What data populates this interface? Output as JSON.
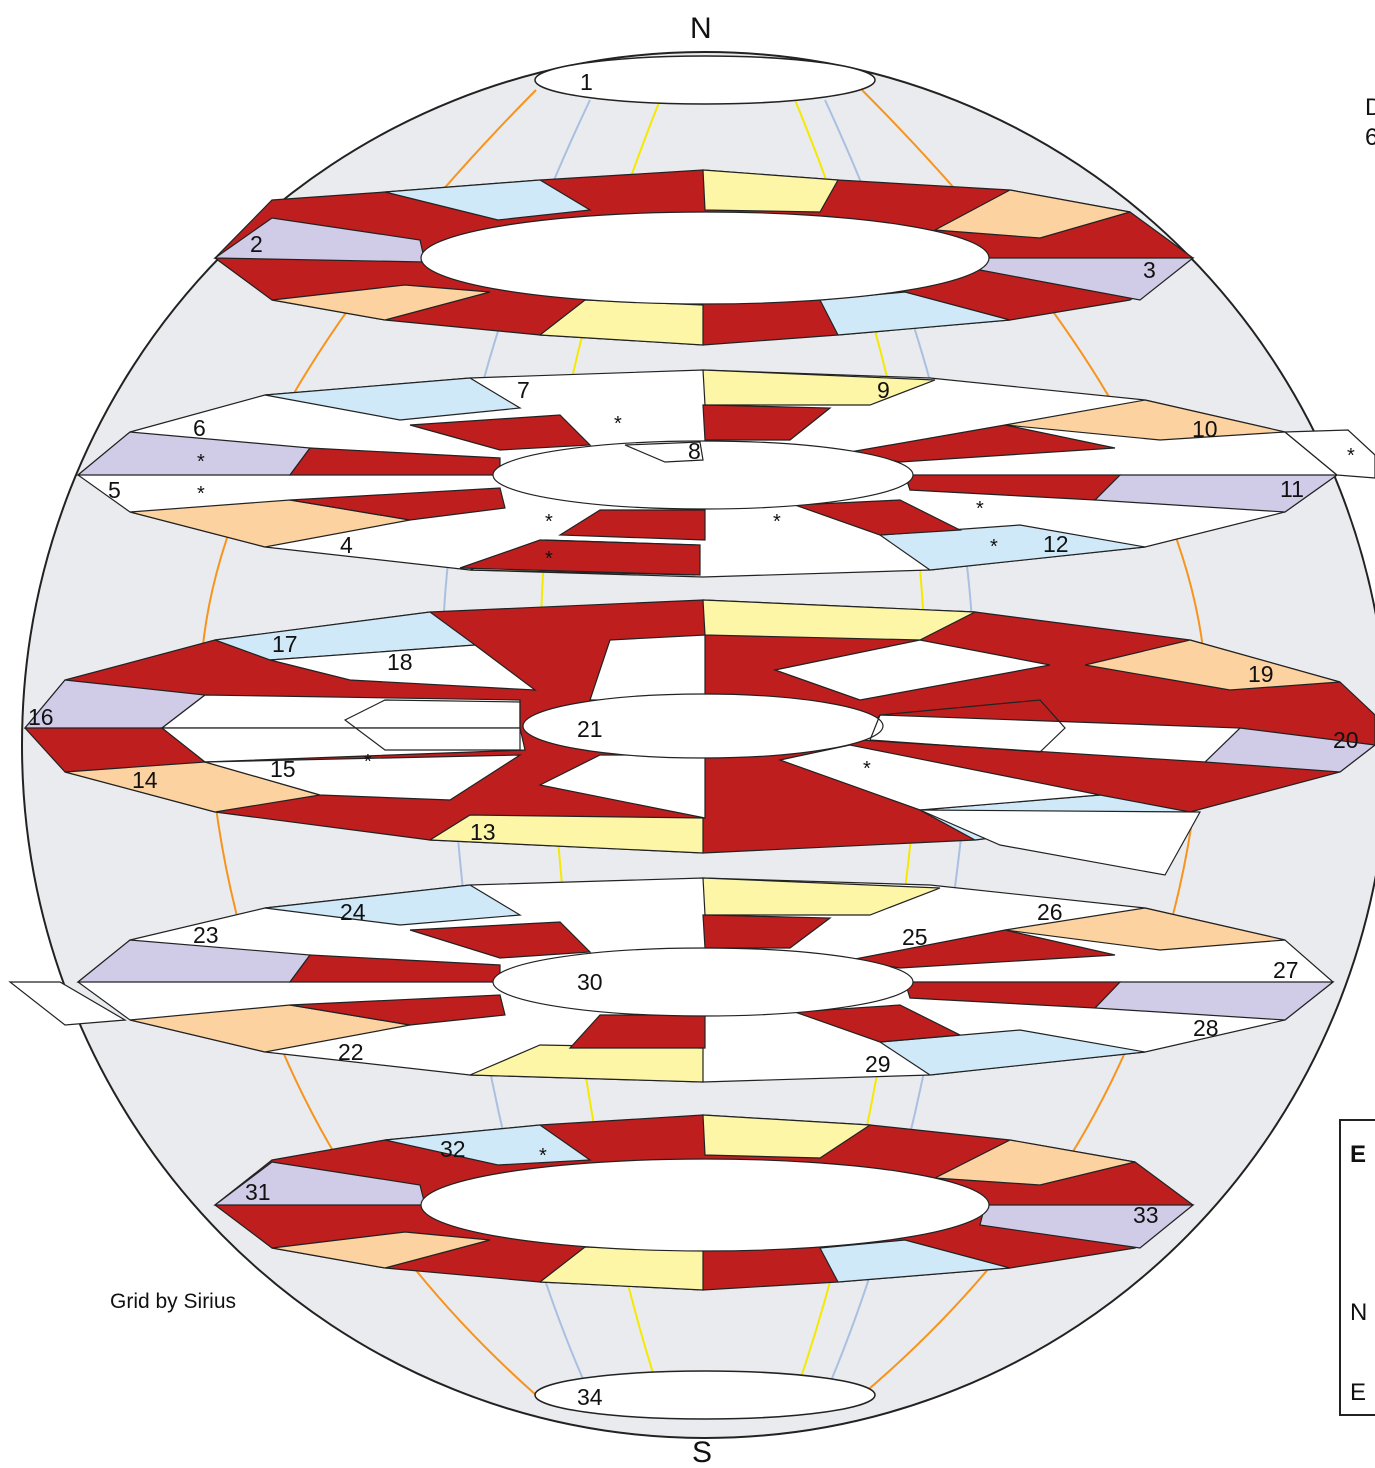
{
  "poles": {
    "north": "N",
    "south": "S"
  },
  "credit": "Grid by Sirius",
  "corner_text": {
    "line1": "D",
    "line2": "6"
  },
  "legend_fragment": {
    "header": "E",
    "row1": "N",
    "row2": "E"
  },
  "colors": {
    "sphere": "#e9ebef",
    "red": "#bf1e1e",
    "yellow": "#fdf6a6",
    "blue": "#cfe9f8",
    "orange": "#fcd2a0",
    "purple": "#d0cbe6",
    "white": "#ffffff",
    "meridian_orange": "#f7941d",
    "meridian_blue": "#a9c0e0",
    "meridian_yellow": "#f5e900"
  },
  "face_numbers": [
    "1",
    "2",
    "3",
    "4",
    "5",
    "6",
    "7",
    "8",
    "9",
    "10",
    "11",
    "12",
    "13",
    "14",
    "15",
    "16",
    "17",
    "18",
    "19",
    "20",
    "21",
    "22",
    "23",
    "24",
    "25",
    "26",
    "27",
    "28",
    "29",
    "30",
    "31",
    "32",
    "33",
    "34"
  ],
  "marker": "*"
}
